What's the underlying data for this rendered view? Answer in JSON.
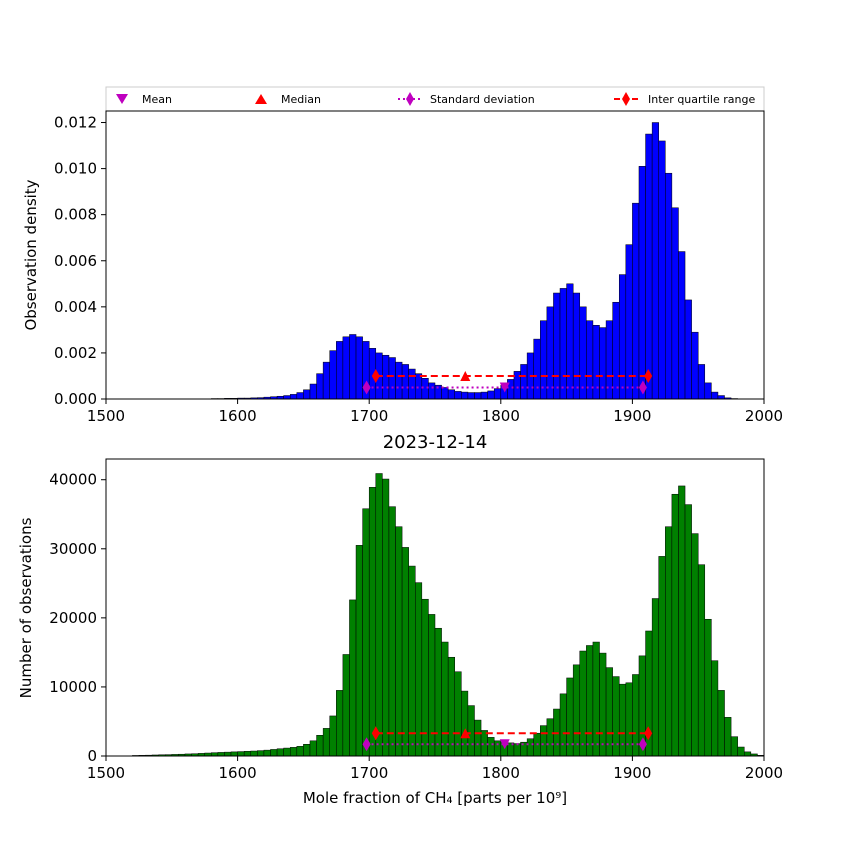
{
  "colors": {
    "top_bars": "#0000ff",
    "bottom_bars": "#008000",
    "mean": "#bf00bf",
    "median": "#ff0000",
    "std": "#bf00bf",
    "iqr": "#ff0000"
  },
  "chart_data": [
    {
      "type": "bar",
      "title": "",
      "xlabel": "",
      "ylabel": "Observation density",
      "xlim": [
        1500,
        2000
      ],
      "ylim": [
        0,
        0.0125
      ],
      "xticks": [
        1500,
        1600,
        1700,
        1800,
        1900,
        2000
      ],
      "xtick_labels": [
        "1500",
        "1600",
        "1700",
        "1800",
        "1900",
        "2000"
      ],
      "yticks": [
        0,
        0.002,
        0.004,
        0.006,
        0.008,
        0.01,
        0.012
      ],
      "ytick_labels": [
        "0.000",
        "0.002",
        "0.004",
        "0.006",
        "0.008",
        "0.010",
        "0.012"
      ],
      "bin_start": 1520,
      "bin_width": 5,
      "values": [
        0,
        0,
        0,
        0,
        0,
        0,
        0,
        0,
        0,
        0,
        1e-05,
        1e-05,
        2e-05,
        2e-05,
        3e-05,
        3e-05,
        4e-05,
        4e-05,
        5e-05,
        6e-05,
        8e-05,
        0.0001,
        0.00012,
        0.00015,
        0.0002,
        0.00028,
        0.0004,
        0.00065,
        0.0011,
        0.0016,
        0.0021,
        0.0025,
        0.0027,
        0.0028,
        0.0027,
        0.0025,
        0.0022,
        0.002,
        0.0019,
        0.0018,
        0.0016,
        0.0015,
        0.0013,
        0.0011,
        0.0009,
        0.0007,
        0.0006,
        0.0005,
        0.0004,
        0.00033,
        0.0003,
        0.00028,
        0.00028,
        0.0003,
        0.00035,
        0.00045,
        0.0006,
        0.00085,
        0.0012,
        0.0015,
        0.002,
        0.0026,
        0.0034,
        0.004,
        0.0046,
        0.0048,
        0.005,
        0.0046,
        0.004,
        0.0034,
        0.0032,
        0.0031,
        0.0034,
        0.0042,
        0.0054,
        0.0067,
        0.0085,
        0.0101,
        0.0115,
        0.012,
        0.0112,
        0.0098,
        0.0083,
        0.0064,
        0.0043,
        0.0029,
        0.0015,
        0.0007,
        0.0003,
        0.00015,
        5e-05,
        2e-05
      ],
      "legend": {
        "placement": "above axes",
        "entries": [
          {
            "label": "Mean",
            "marker": "triangle-down",
            "line": "none"
          },
          {
            "label": "Median",
            "marker": "triangle-up",
            "line": "none"
          },
          {
            "label": "Standard deviation",
            "marker": "diamond",
            "line": "dotted"
          },
          {
            "label": "Inter quartile range",
            "marker": "diamond",
            "line": "dashed"
          }
        ]
      },
      "statistics": {
        "mean": {
          "x": 1803,
          "y": 0.0005
        },
        "median": {
          "x": 1773,
          "y": 0.001
        },
        "std": {
          "x0": 1698,
          "x1": 1908,
          "y": 0.0005
        },
        "iqr": {
          "x0": 1705,
          "x1": 1912,
          "y": 0.001
        }
      }
    },
    {
      "type": "bar",
      "title": "2023-12-14",
      "xlabel": "Mole fraction of CH₄ [parts per 10⁹]",
      "ylabel": "Number of observations",
      "xlim": [
        1500,
        2000
      ],
      "ylim": [
        0,
        43000
      ],
      "xticks": [
        1500,
        1600,
        1700,
        1800,
        1900,
        2000
      ],
      "xtick_labels": [
        "1500",
        "1600",
        "1700",
        "1800",
        "1900",
        "2000"
      ],
      "yticks": [
        0,
        10000,
        20000,
        30000,
        40000
      ],
      "ytick_labels": [
        "0",
        "10000",
        "20000",
        "30000",
        "40000"
      ],
      "bin_start": 1520,
      "bin_width": 5,
      "values": [
        80,
        100,
        120,
        150,
        180,
        200,
        230,
        260,
        300,
        330,
        380,
        430,
        480,
        520,
        560,
        600,
        640,
        680,
        720,
        780,
        850,
        950,
        1050,
        1150,
        1250,
        1400,
        1700,
        2200,
        3000,
        4000,
        5800,
        9500,
        14700,
        22600,
        30500,
        35800,
        38900,
        40900,
        40100,
        36100,
        33200,
        30200,
        27500,
        25100,
        22700,
        20500,
        18500,
        16500,
        14300,
        12200,
        9400,
        7300,
        5200,
        3700,
        2700,
        2200,
        2000,
        1900,
        1800,
        2000,
        2500,
        3300,
        4400,
        5400,
        6800,
        9000,
        11300,
        13200,
        15200,
        16000,
        16500,
        14900,
        12800,
        11500,
        10400,
        10600,
        11800,
        14500,
        18100,
        22800,
        28900,
        33200,
        37900,
        39100,
        36400,
        32200,
        27700,
        19800,
        13800,
        9500,
        5600,
        2800,
        1300,
        600,
        300,
        100
      ],
      "statistics": {
        "mean": {
          "x": 1803,
          "y": 1700
        },
        "median": {
          "x": 1773,
          "y": 3300
        },
        "std": {
          "x0": 1698,
          "x1": 1908,
          "y": 1700
        },
        "iqr": {
          "x0": 1705,
          "x1": 1912,
          "y": 3300
        }
      }
    }
  ]
}
